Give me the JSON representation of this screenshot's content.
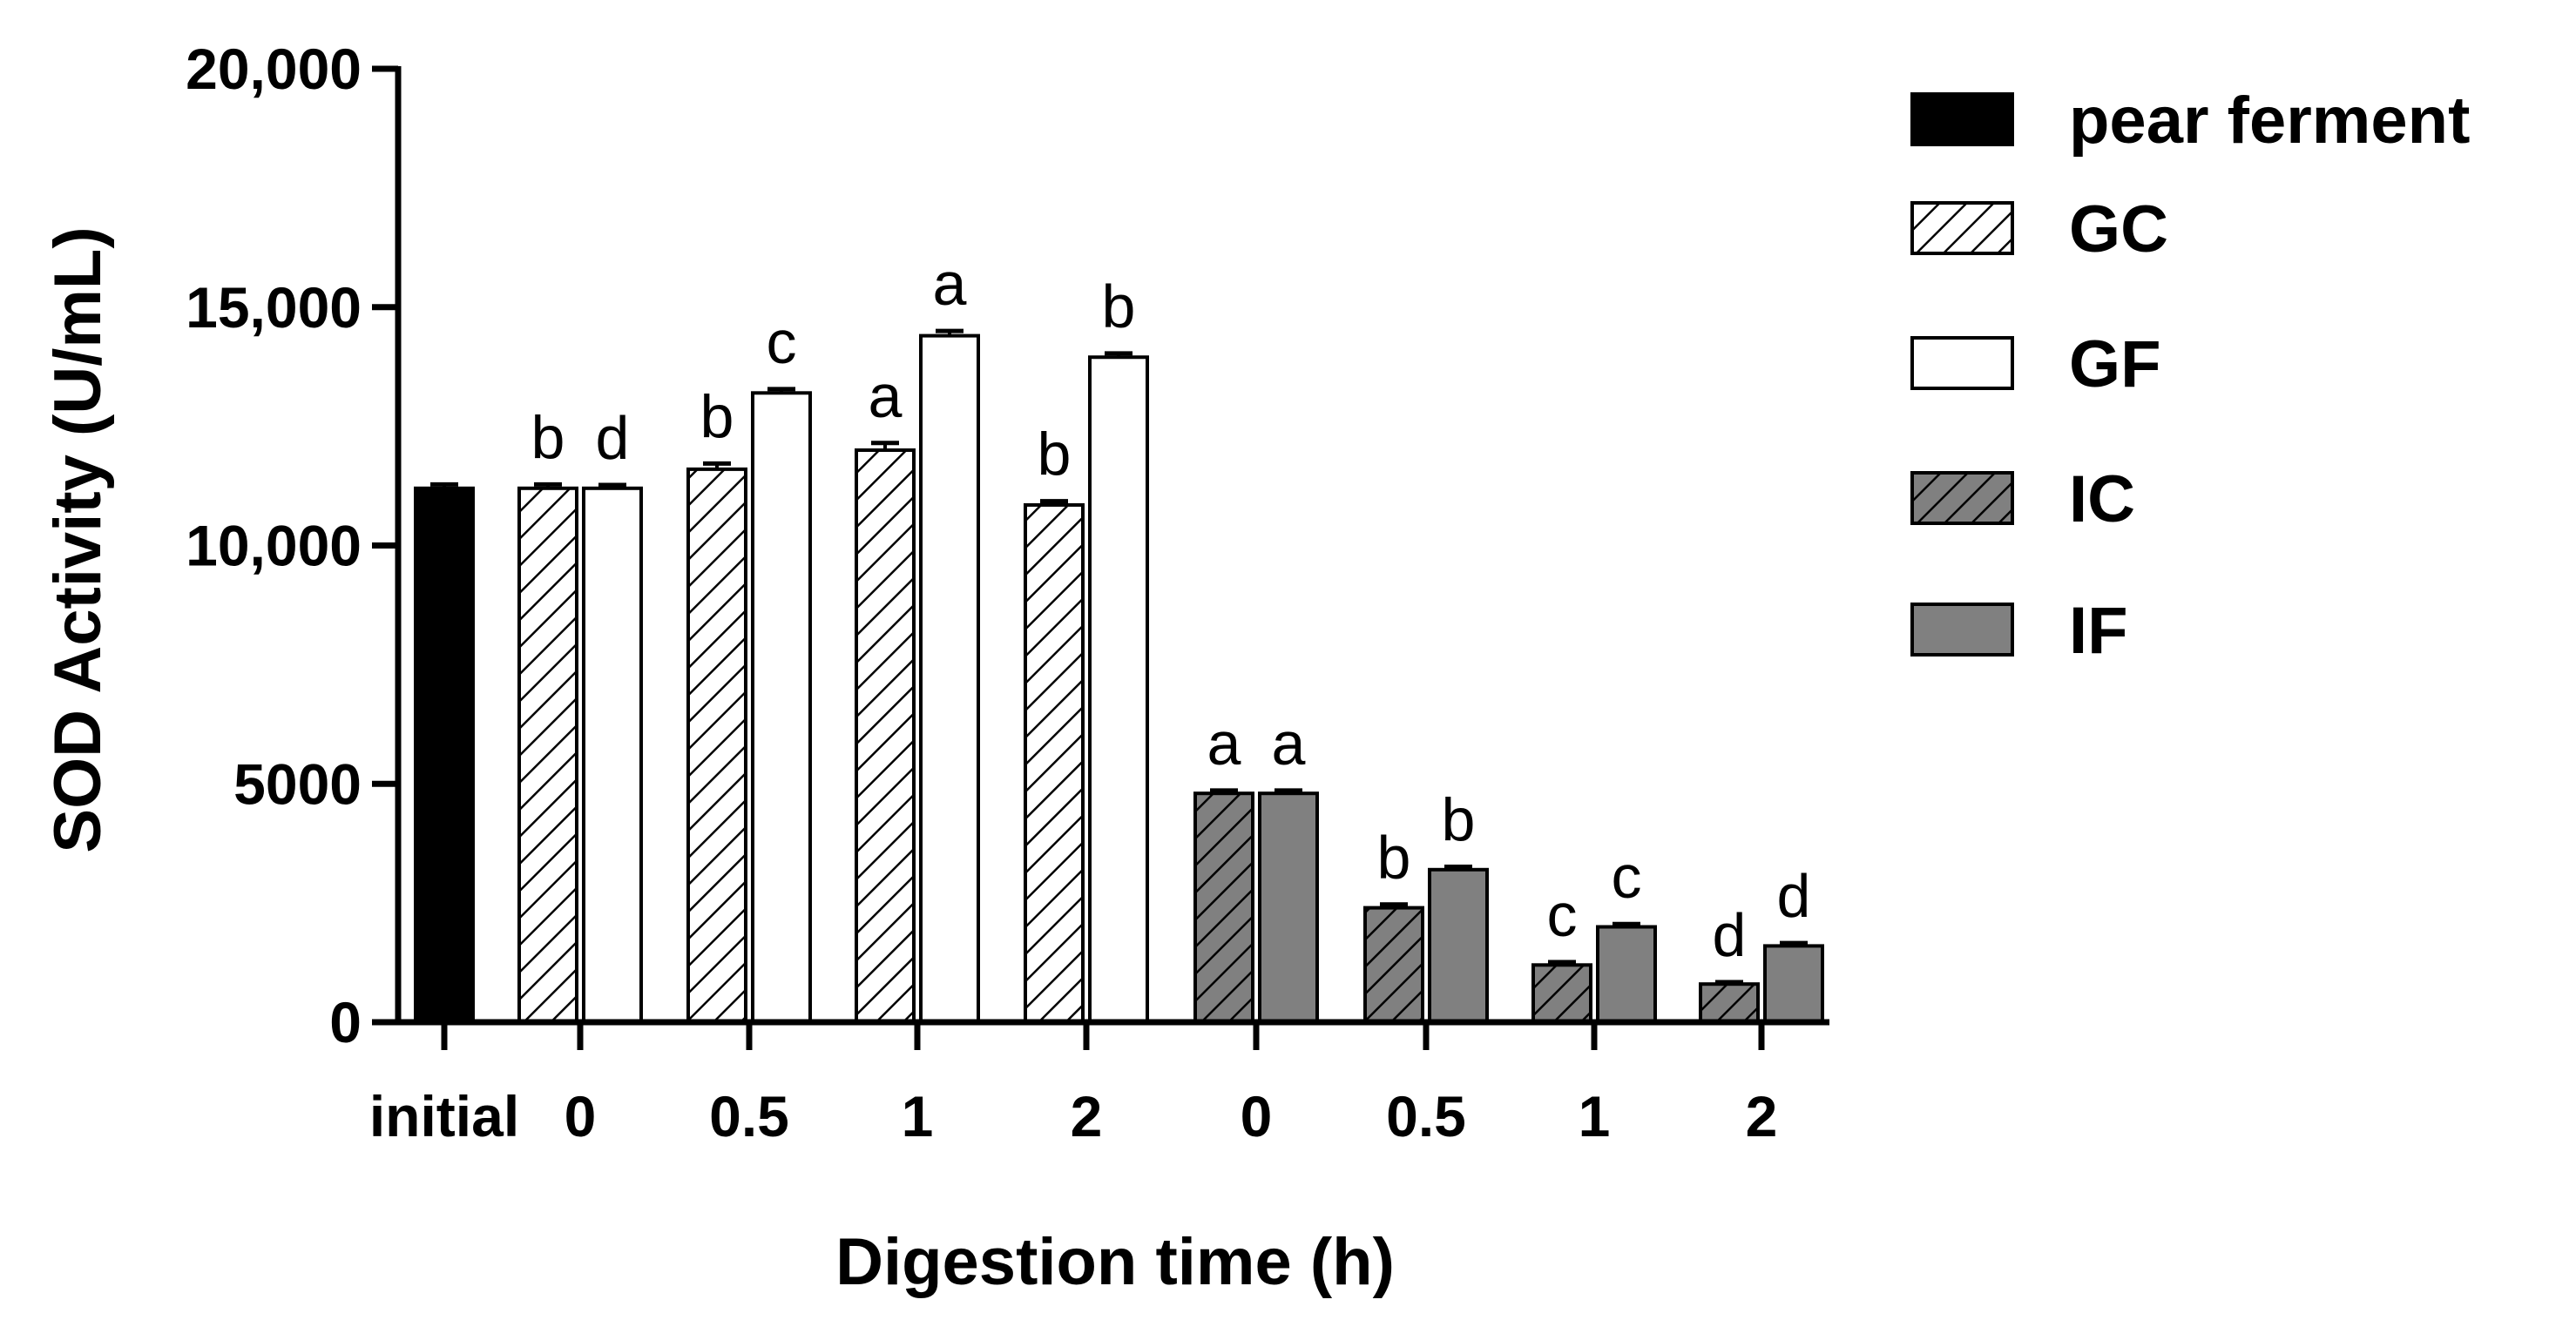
{
  "chart_data": {
    "type": "bar",
    "ylabel": "SOD Activity (U/mL)",
    "xlabel": "Digestion time (h)",
    "ylim": [
      0,
      20000
    ],
    "yticks": [
      0,
      5000,
      10000,
      15000,
      20000
    ],
    "ytick_labels": [
      "0",
      "5000",
      "10,000",
      "15,000",
      "20,000"
    ],
    "categories": [
      "initial",
      "0",
      "0.5",
      "1",
      "2",
      "0",
      "0.5",
      "1",
      "2"
    ],
    "legend_position": "top-right",
    "series": [
      {
        "name": "pear ferment",
        "pattern": "solid-black",
        "values": [
          11200,
          null,
          null,
          null,
          null,
          null,
          null,
          null,
          null
        ],
        "errors": [
          80,
          null,
          null,
          null,
          null,
          null,
          null,
          null,
          null
        ],
        "letters": [
          "",
          null,
          null,
          null,
          null,
          null,
          null,
          null,
          null
        ]
      },
      {
        "name": "GC",
        "pattern": "hatch-white",
        "values": [
          null,
          11200,
          11600,
          12000,
          10850,
          null,
          null,
          null,
          null
        ],
        "errors": [
          null,
          80,
          120,
          150,
          80,
          null,
          null,
          null,
          null
        ],
        "letters": [
          null,
          "b",
          "b",
          "a",
          "b",
          null,
          null,
          null,
          null
        ]
      },
      {
        "name": "GF",
        "pattern": "solid-white",
        "values": [
          null,
          11200,
          13200,
          14400,
          13950,
          null,
          null,
          null,
          null
        ],
        "errors": [
          null,
          70,
          80,
          100,
          80,
          null,
          null,
          null,
          null
        ],
        "letters": [
          null,
          "d",
          "c",
          "a",
          "b",
          null,
          null,
          null,
          null
        ]
      },
      {
        "name": "IC",
        "pattern": "hatch-gray",
        "values": [
          null,
          null,
          null,
          null,
          null,
          4800,
          2400,
          1200,
          800
        ],
        "errors": [
          null,
          null,
          null,
          null,
          null,
          60,
          70,
          60,
          40
        ],
        "letters": [
          null,
          null,
          null,
          null,
          null,
          "a",
          "b",
          "c",
          "d"
        ]
      },
      {
        "name": "IF",
        "pattern": "solid-gray",
        "values": [
          null,
          null,
          null,
          null,
          null,
          4800,
          3200,
          2000,
          1600
        ],
        "errors": [
          null,
          null,
          null,
          null,
          null,
          60,
          60,
          60,
          60
        ],
        "letters": [
          null,
          null,
          null,
          null,
          null,
          "a",
          "b",
          "c",
          "d"
        ]
      }
    ],
    "colors": {
      "black": "#000000",
      "gray": "#808080",
      "white": "#ffffff"
    }
  }
}
